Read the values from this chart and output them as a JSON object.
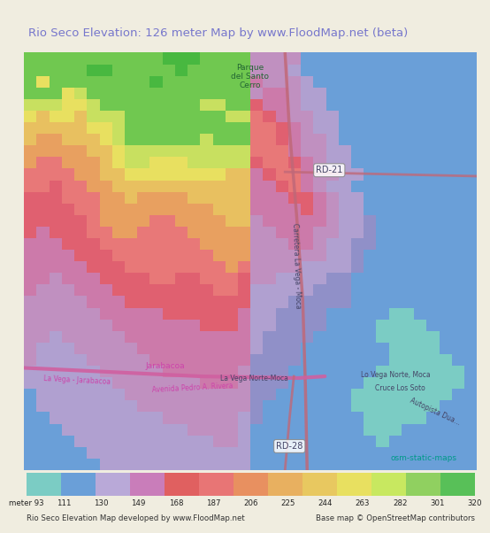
{
  "title": "Rio Seco Elevation: 126 meter Map by www.FloodMap.net (beta)",
  "title_color": "#7777cc",
  "title_fontsize": 9.5,
  "bg_color": "#f0ede0",
  "colorbar_labels": [
    "meter 93",
    "111",
    "130",
    "149",
    "168",
    "187",
    "206",
    "225",
    "244",
    "263",
    "282",
    "301",
    "320"
  ],
  "colorbar_colors": [
    "#7bccc4",
    "#6a9fd8",
    "#b9a9d8",
    "#c97dba",
    "#e06060",
    "#e87575",
    "#e89060",
    "#e8b060",
    "#e8c860",
    "#e8e060",
    "#c8e860",
    "#90d060",
    "#58c058"
  ],
  "footer_left": "Rio Seco Elevation Map developed by www.FloodMap.net",
  "footer_right": "Base map © OpenStreetMap contributors",
  "road_color_main": "#c87888",
  "road_color_diagonal": "#c07080",
  "road_color_pink": "#d060a0",
  "label_color_dark": "#444488",
  "label_color_green": "#226622",
  "label_color_teal": "#009988",
  "label_color_pink": "#cc44aa",
  "label_color_road": "#555555",
  "colors": {
    "c0": "#7bccc4",
    "c1": "#6a9fd8",
    "c2": "#9090d8",
    "c3": "#b0a0d8",
    "c4": "#c090c8",
    "c5": "#cc80b8",
    "c6": "#e06060",
    "c7": "#e87878",
    "c8": "#e89060",
    "c9": "#e8b060",
    "c10": "#e8c860",
    "c11": "#e8e060",
    "c12": "#c8e060",
    "c13": "#90d060",
    "c14": "#58c058"
  },
  "block_size": 14
}
